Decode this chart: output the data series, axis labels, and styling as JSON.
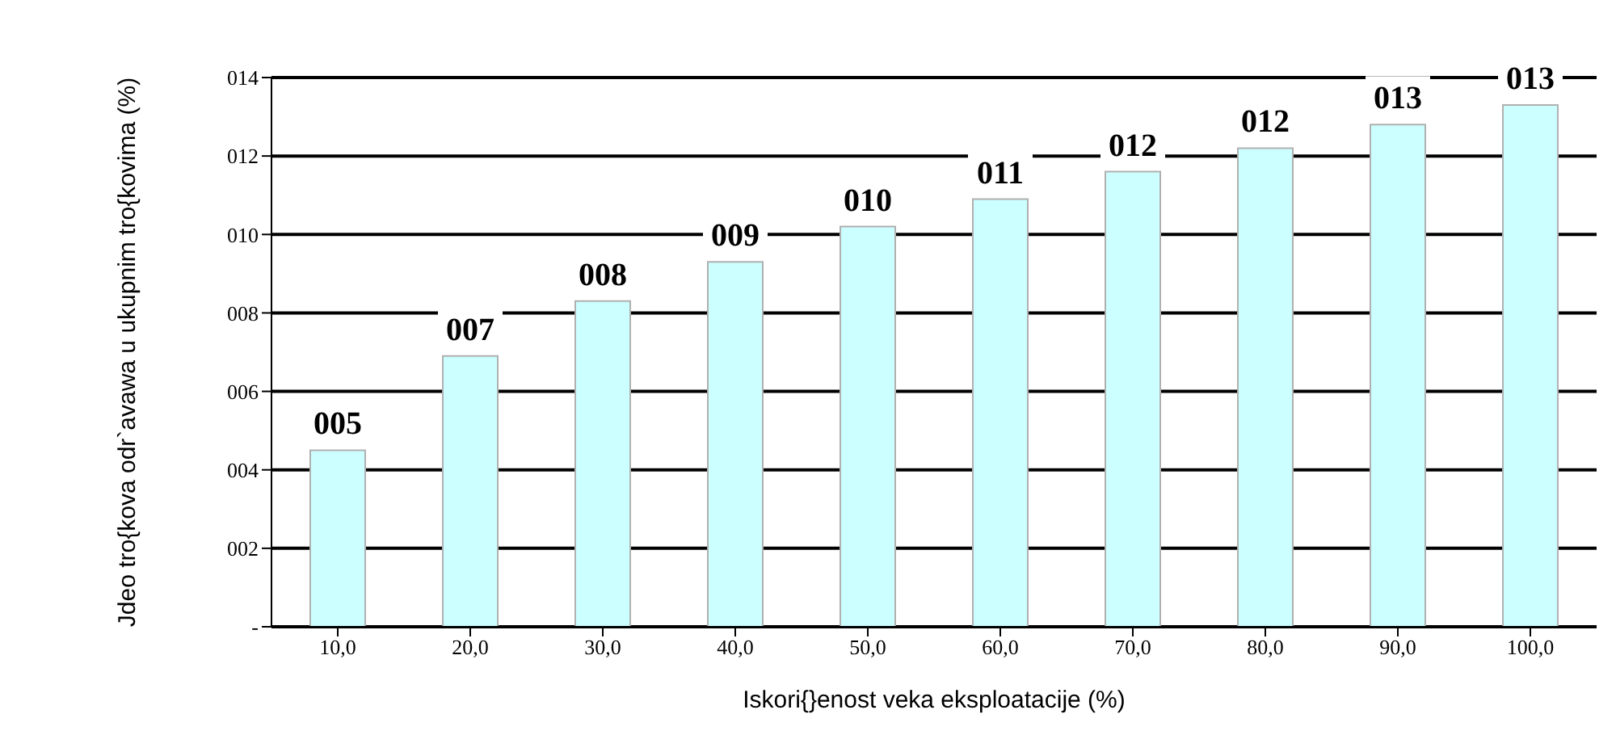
{
  "chart_data": {
    "type": "bar",
    "xlabel": "Iskori{}enost veka eksploatacije (%)",
    "ylabel": "Jdeo tro{kova odr`avawa u ukupnim tro{kovima (%)",
    "categories": [
      "10,0",
      "20,0",
      "30,0",
      "40,0",
      "50,0",
      "60,0",
      "70,0",
      "80,0",
      "90,0",
      "100,0"
    ],
    "values": [
      4.5,
      6.9,
      8.3,
      9.3,
      10.2,
      10.9,
      11.6,
      12.2,
      12.8,
      13.3
    ],
    "value_labels": [
      "005",
      "007",
      "008",
      "009",
      "010",
      "011",
      "012",
      "012",
      "013",
      "013"
    ],
    "color": "#ccffff",
    "ylim": [
      0,
      14
    ],
    "yticks": [
      {
        "value": 0,
        "label": "-"
      },
      {
        "value": 2,
        "label": "002"
      },
      {
        "value": 4,
        "label": "004"
      },
      {
        "value": 6,
        "label": "006"
      },
      {
        "value": 8,
        "label": "008"
      },
      {
        "value": 10,
        "label": "010"
      },
      {
        "value": 12,
        "label": "012"
      },
      {
        "value": 14,
        "label": "014"
      }
    ],
    "grid": "y"
  }
}
